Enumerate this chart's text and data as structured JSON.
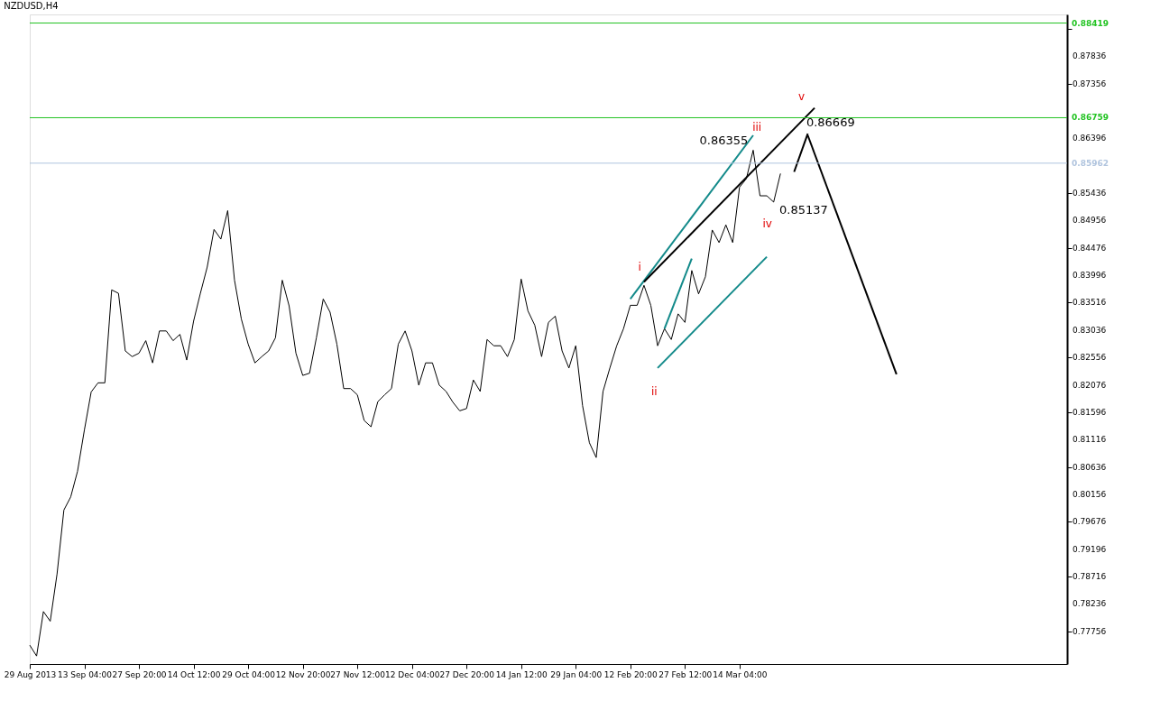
{
  "chart_data": {
    "type": "line",
    "title": "NZDUSD,H4",
    "categories": [
      "29 Aug 2013",
      null,
      null,
      null,
      null,
      null,
      null,
      null,
      "13 Sep 04:00",
      null,
      null,
      null,
      null,
      null,
      null,
      null,
      "27 Sep 20:00",
      null,
      null,
      null,
      null,
      null,
      null,
      null,
      "14 Oct 12:00",
      null,
      null,
      null,
      null,
      null,
      null,
      null,
      "29 Oct 04:00",
      null,
      null,
      null,
      null,
      null,
      null,
      null,
      "12 Nov 20:00",
      null,
      null,
      null,
      null,
      null,
      null,
      null,
      "27 Nov 12:00",
      null,
      null,
      null,
      null,
      null,
      null,
      null,
      "12 Dec 04:00",
      null,
      null,
      null,
      null,
      null,
      null,
      null,
      "27 Dec 20:00",
      null,
      null,
      null,
      null,
      null,
      null,
      null,
      "14 Jan 12:00",
      null,
      null,
      null,
      null,
      null,
      null,
      null,
      "29 Jan 04:00",
      null,
      null,
      null,
      null,
      null,
      null,
      null,
      "12 Feb 20:00",
      null,
      null,
      null,
      null,
      null,
      null,
      null,
      "27 Feb 12:00",
      null,
      null,
      null,
      null,
      null,
      null,
      null,
      "14 Mar 04:00",
      null,
      null,
      null,
      null,
      null,
      null,
      null,
      null,
      null,
      null,
      null,
      null,
      null,
      null,
      null,
      null,
      null,
      null,
      null,
      null,
      null,
      null,
      null,
      null,
      null,
      null,
      null,
      null,
      null,
      null,
      null,
      null,
      null,
      null,
      null,
      null,
      null,
      null,
      null,
      null,
      null,
      null,
      null,
      null,
      null,
      null,
      null,
      null
    ],
    "series": [
      {
        "color": "#000000",
        "values": [
          0.7751,
          0.7732,
          0.781,
          0.7793,
          0.7876,
          0.7988,
          0.8011,
          0.8056,
          0.8128,
          0.8195,
          0.8211,
          0.8211,
          0.8374,
          0.8368,
          0.8267,
          0.8257,
          0.8263,
          0.8285,
          0.8246,
          0.8302,
          0.8302,
          0.8285,
          0.8296,
          0.8251,
          0.8319,
          0.8368,
          0.8414,
          0.848,
          0.8463,
          0.8513,
          0.8391,
          0.8323,
          0.8279,
          0.8246,
          0.8257,
          0.8267,
          0.829,
          0.8391,
          0.8346,
          0.8263,
          0.8224,
          0.8228,
          0.829,
          0.8358,
          0.8335,
          0.8279,
          0.8201,
          0.8201,
          0.819,
          0.8145,
          0.8134,
          0.8178,
          0.819,
          0.8201,
          0.8279,
          0.8302,
          0.8267,
          0.8207,
          0.8246,
          0.8246,
          0.8207,
          0.8196,
          0.8177,
          0.8162,
          0.8166,
          0.8216,
          0.8196,
          0.8287,
          0.8276,
          0.8276,
          0.8257,
          0.8287,
          0.8393,
          0.8337,
          0.8312,
          0.8257,
          0.8317,
          0.8328,
          0.8267,
          0.8237,
          0.8276,
          0.8171,
          0.8106,
          0.808,
          0.8196,
          0.8237,
          0.8276,
          0.8306,
          0.8347,
          0.8347,
          0.8382,
          0.8347,
          0.8276,
          0.8306,
          0.8287,
          0.8332,
          0.8317,
          0.8408,
          0.8367,
          0.8397,
          0.8479,
          0.8457,
          0.8488,
          0.8457,
          0.8554,
          0.8569,
          0.8619,
          0.8539,
          0.8539,
          0.8528,
          0.8578,
          null,
          null,
          null,
          null,
          null,
          null,
          null,
          null,
          null,
          null,
          null,
          null,
          null,
          null,
          null,
          null,
          null,
          null,
          null,
          null,
          null,
          null,
          null,
          null,
          null,
          null,
          null,
          null,
          null,
          null,
          null,
          null,
          null,
          null,
          null,
          null,
          null,
          null,
          null,
          null,
          null,
          null
        ]
      },
      {
        "type": "line",
        "color": "#138a8a",
        "values": [
          null,
          null,
          null,
          null,
          null,
          null,
          null,
          null,
          null,
          null,
          null,
          null,
          null,
          null,
          null,
          null,
          null,
          null,
          null,
          null,
          null,
          null,
          null,
          null,
          null,
          null,
          null,
          null,
          null,
          null,
          null,
          null,
          null,
          null,
          null,
          null,
          null,
          null,
          null,
          null,
          null,
          null,
          null,
          null,
          null,
          null,
          null,
          null,
          null,
          null,
          null,
          null,
          null,
          null,
          null,
          null,
          null,
          null,
          null,
          null,
          null,
          null,
          null,
          null,
          null,
          null,
          null,
          null,
          null,
          null,
          null,
          null,
          null,
          null,
          null,
          null,
          null,
          null,
          null,
          null,
          null,
          null,
          null,
          null,
          null,
          null,
          null,
          null,
          0.8358,
          null,
          null,
          null,
          null,
          null,
          null,
          null,
          null,
          null,
          null,
          null,
          null,
          null,
          null,
          null,
          null,
          null,
          0.8645,
          null,
          null,
          null,
          null,
          null,
          null,
          null,
          null,
          null,
          null,
          null,
          null,
          null,
          null,
          null,
          null,
          null,
          null,
          null,
          null,
          null,
          null,
          null,
          null,
          null,
          null,
          null,
          null,
          null,
          null,
          null,
          null,
          null,
          null,
          null,
          null,
          null,
          null,
          null,
          null,
          null,
          null,
          null,
          null,
          null,
          null
        ]
      },
      {
        "type": "line",
        "color": "#138a8a",
        "values": [
          null,
          null,
          null,
          null,
          null,
          null,
          null,
          null,
          null,
          null,
          null,
          null,
          null,
          null,
          null,
          null,
          null,
          null,
          null,
          null,
          null,
          null,
          null,
          null,
          null,
          null,
          null,
          null,
          null,
          null,
          null,
          null,
          null,
          null,
          null,
          null,
          null,
          null,
          null,
          null,
          null,
          null,
          null,
          null,
          null,
          null,
          null,
          null,
          null,
          null,
          null,
          null,
          null,
          null,
          null,
          null,
          null,
          null,
          null,
          null,
          null,
          null,
          null,
          null,
          null,
          null,
          null,
          null,
          null,
          null,
          null,
          null,
          null,
          null,
          null,
          null,
          null,
          null,
          null,
          null,
          null,
          null,
          null,
          null,
          null,
          null,
          null,
          null,
          null,
          null,
          null,
          null,
          0.8237,
          null,
          null,
          null,
          null,
          null,
          null,
          null,
          null,
          null,
          null,
          null,
          null,
          null,
          null,
          null,
          0.8432,
          null,
          null,
          null,
          null,
          null,
          null,
          null,
          null,
          null,
          null,
          null,
          null,
          null,
          null,
          null,
          null,
          null,
          null,
          null,
          null,
          null,
          null,
          null,
          null,
          null,
          null,
          null,
          null,
          null,
          null,
          null,
          null,
          null,
          null,
          null,
          null,
          null,
          null,
          null,
          null,
          null,
          null,
          null,
          null
        ]
      },
      {
        "type": "line",
        "color": "#138a8a",
        "values": [
          null,
          null,
          null,
          null,
          null,
          null,
          null,
          null,
          null,
          null,
          null,
          null,
          null,
          null,
          null,
          null,
          null,
          null,
          null,
          null,
          null,
          null,
          null,
          null,
          null,
          null,
          null,
          null,
          null,
          null,
          null,
          null,
          null,
          null,
          null,
          null,
          null,
          null,
          null,
          null,
          null,
          null,
          null,
          null,
          null,
          null,
          null,
          null,
          null,
          null,
          null,
          null,
          null,
          null,
          null,
          null,
          null,
          null,
          null,
          null,
          null,
          null,
          null,
          null,
          null,
          null,
          null,
          null,
          null,
          null,
          null,
          null,
          null,
          null,
          null,
          null,
          null,
          null,
          null,
          null,
          null,
          null,
          null,
          null,
          null,
          null,
          null,
          null,
          null,
          null,
          null,
          null,
          null,
          0.8306,
          null,
          null,
          null,
          0.8429,
          null,
          null,
          null,
          null,
          null,
          null,
          null,
          null,
          null,
          null,
          null,
          null,
          null,
          null,
          null,
          null,
          null,
          null,
          null,
          null,
          null,
          null,
          null,
          null,
          null,
          null,
          null,
          null,
          null,
          null,
          null,
          null,
          null,
          null,
          null,
          null,
          null,
          null,
          null,
          null,
          null,
          null,
          null,
          null,
          null,
          null,
          null,
          null,
          null,
          null,
          null,
          null,
          null,
          null,
          null
        ]
      },
      {
        "type": "line",
        "color": "#000000",
        "values": [
          null,
          null,
          null,
          null,
          null,
          null,
          null,
          null,
          null,
          null,
          null,
          null,
          null,
          null,
          null,
          null,
          null,
          null,
          null,
          null,
          null,
          null,
          null,
          null,
          null,
          null,
          null,
          null,
          null,
          null,
          null,
          null,
          null,
          null,
          null,
          null,
          null,
          null,
          null,
          null,
          null,
          null,
          null,
          null,
          null,
          null,
          null,
          null,
          null,
          null,
          null,
          null,
          null,
          null,
          null,
          null,
          null,
          null,
          null,
          null,
          null,
          null,
          null,
          null,
          null,
          null,
          null,
          null,
          null,
          null,
          null,
          null,
          null,
          null,
          null,
          null,
          null,
          null,
          null,
          null,
          null,
          null,
          null,
          null,
          null,
          null,
          null,
          null,
          null,
          null,
          0.8388,
          null,
          null,
          null,
          null,
          null,
          null,
          null,
          null,
          null,
          null,
          null,
          null,
          null,
          null,
          null,
          null,
          null,
          null,
          null,
          null,
          null,
          null,
          null,
          null,
          0.8693,
          null,
          null,
          null,
          null,
          null,
          null,
          null,
          null,
          null,
          null,
          null,
          null,
          null,
          null,
          null,
          null,
          null,
          null,
          null,
          null,
          null,
          null,
          null,
          null,
          null,
          null,
          null,
          null,
          null,
          null,
          null,
          null,
          null,
          null,
          null,
          null,
          null
        ]
      },
      {
        "type": "line",
        "color": "#000000",
        "values": [
          null,
          null,
          null,
          null,
          null,
          null,
          null,
          null,
          null,
          null,
          null,
          null,
          null,
          null,
          null,
          null,
          null,
          null,
          null,
          null,
          null,
          null,
          null,
          null,
          null,
          null,
          null,
          null,
          null,
          null,
          null,
          null,
          null,
          null,
          null,
          null,
          null,
          null,
          null,
          null,
          null,
          null,
          null,
          null,
          null,
          null,
          null,
          null,
          null,
          null,
          null,
          null,
          null,
          null,
          null,
          null,
          null,
          null,
          null,
          null,
          null,
          null,
          null,
          null,
          null,
          null,
          null,
          null,
          null,
          null,
          null,
          null,
          null,
          null,
          null,
          null,
          null,
          null,
          null,
          null,
          null,
          null,
          null,
          null,
          null,
          null,
          null,
          null,
          null,
          null,
          null,
          null,
          null,
          null,
          null,
          null,
          null,
          null,
          null,
          null,
          null,
          null,
          null,
          null,
          null,
          null,
          null,
          null,
          null,
          null,
          null,
          null,
          0.8581,
          null,
          0.8648,
          null,
          null,
          null,
          null,
          null,
          null,
          null,
          null,
          null,
          null,
          null,
          null,
          null,
          null,
          null,
          null,
          null,
          null,
          null,
          null,
          null,
          null,
          null,
          null,
          null,
          null,
          null,
          null,
          null,
          null,
          null,
          null,
          null,
          null,
          null,
          null,
          null,
          null
        ]
      },
      {
        "type": "line",
        "color": "#000000",
        "values": [
          null,
          null,
          null,
          null,
          null,
          null,
          null,
          null,
          null,
          null,
          null,
          null,
          null,
          null,
          null,
          null,
          null,
          null,
          null,
          null,
          null,
          null,
          null,
          null,
          null,
          null,
          null,
          null,
          null,
          null,
          null,
          null,
          null,
          null,
          null,
          null,
          null,
          null,
          null,
          null,
          null,
          null,
          null,
          null,
          null,
          null,
          null,
          null,
          null,
          null,
          null,
          null,
          null,
          null,
          null,
          null,
          null,
          null,
          null,
          null,
          null,
          null,
          null,
          null,
          null,
          null,
          null,
          null,
          null,
          null,
          null,
          null,
          null,
          null,
          null,
          null,
          null,
          null,
          null,
          null,
          null,
          null,
          null,
          null,
          null,
          null,
          null,
          null,
          null,
          null,
          null,
          null,
          null,
          null,
          null,
          null,
          null,
          null,
          null,
          null,
          null,
          null,
          null,
          null,
          null,
          null,
          null,
          null,
          null,
          null,
          null,
          null,
          null,
          null,
          0.8645,
          null,
          null,
          null,
          null,
          null,
          null,
          null,
          null,
          null,
          null,
          null,
          null,
          0.8226,
          null,
          null,
          null,
          null,
          null,
          null,
          null,
          null,
          null,
          null,
          null,
          null,
          null,
          null,
          null,
          null,
          null,
          null,
          null,
          null,
          null,
          null,
          null,
          null,
          null
        ]
      }
    ],
    "ylim": [
      0.7718,
      0.8857
    ],
    "yticks": [
      0.77756,
      0.78236,
      0.78716,
      0.79196,
      0.79676,
      0.80156,
      0.80636,
      0.81116,
      0.81596,
      0.82076,
      0.82556,
      0.83036,
      0.83516,
      0.83996,
      0.84476,
      0.84956,
      0.85436,
      0.86396,
      0.87356,
      0.87836,
      {
        "value": 0.88316,
        "label": null
      }
    ],
    "ref_lines": [
      {
        "axis": "y",
        "value": 0.88419,
        "label": "0.88419",
        "color": "#22c322"
      },
      {
        "axis": "y",
        "value": 0.86759,
        "label": "0.86759",
        "color": "#22c322"
      },
      {
        "axis": "y",
        "value": 0.85962,
        "label": "0.85962",
        "color": "#b0c4de"
      }
    ],
    "annotations": [
      "i",
      "ii",
      "iii",
      "iv",
      "v",
      "0.86355",
      "0.86669",
      "0.85137"
    ],
    "grid": false
  }
}
